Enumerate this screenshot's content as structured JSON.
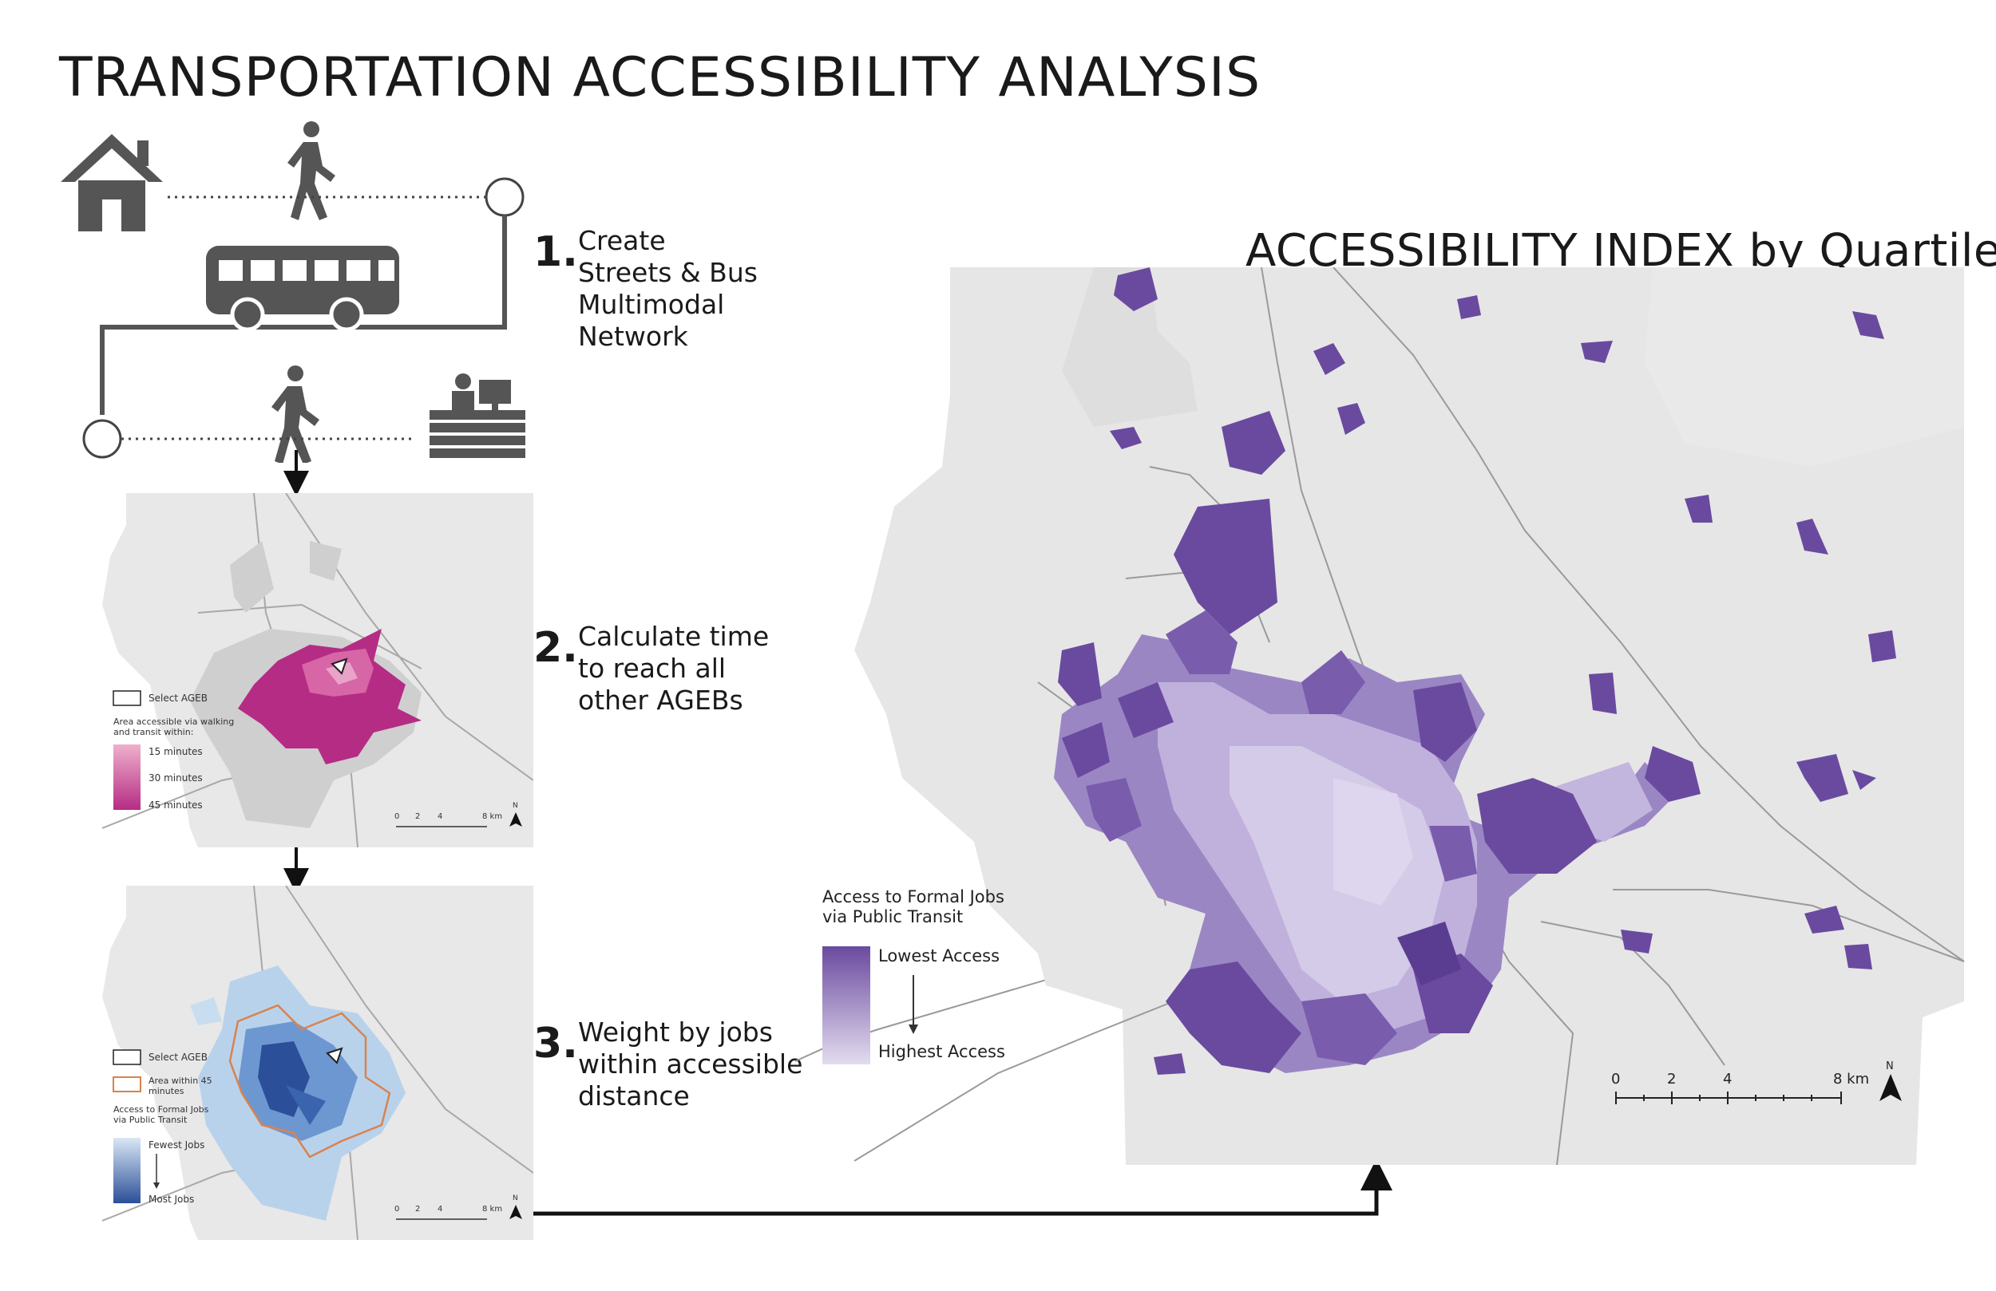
{
  "title": "TRANSPORTATION ACCESSIBILITY ANALYSIS",
  "index_title": "ACCESSIBILITY INDEX by Quartile",
  "steps": [
    {
      "number": "1.",
      "lines": [
        "Create",
        "Streets & Bus",
        "Multimodal",
        "Network"
      ]
    },
    {
      "number": "2.",
      "lines": [
        "Calculate time",
        "to reach all",
        "other AGEBs"
      ]
    },
    {
      "number": "3.",
      "lines": [
        "Weight by jobs",
        "within accessible",
        "distance"
      ]
    }
  ],
  "map2_legend": {
    "select": "Select AGEB",
    "area_heading": [
      "Area accessible via walking",
      "and transit within:"
    ],
    "times": [
      "15 minutes",
      "30 minutes",
      "45 minutes"
    ],
    "scale": [
      "0",
      "2",
      "4",
      "8 km"
    ],
    "north": "N"
  },
  "map3_legend": {
    "select": "Select AGEB",
    "area": [
      "Area within 45",
      "minutes"
    ],
    "jobs_heading": [
      "Access to Formal Jobs",
      "via Public Transit"
    ],
    "fewest": "Fewest Jobs",
    "most": "Most Jobs",
    "scale": [
      "0",
      "2",
      "4",
      "8 km"
    ],
    "north": "N"
  },
  "main_legend": {
    "heading": [
      "Access to Formal Jobs",
      "via Public Transit"
    ],
    "lowest": "Lowest Access",
    "highest": "Highest Access"
  },
  "main_scale": {
    "ticks": [
      "0",
      "2",
      "4",
      "8 km"
    ],
    "north": "N"
  },
  "colors": {
    "land": "#e6e6e6",
    "land_dark": "#d6d6d6",
    "road": "#9a9a9a",
    "icon": "#555555",
    "pink_light": "#e8a0bf",
    "pink_dark": "#b52c85",
    "blue_light": "#c8ddf0",
    "blue_dark": "#2b4f99",
    "orange": "#d8834e",
    "purple_dark": "#6a4a9f",
    "purple_mid": "#9b86c4",
    "purple_light": "#d3cbe7"
  },
  "icons": [
    "house-icon",
    "walking-person-icon",
    "bus-icon",
    "office-desk-icon"
  ]
}
